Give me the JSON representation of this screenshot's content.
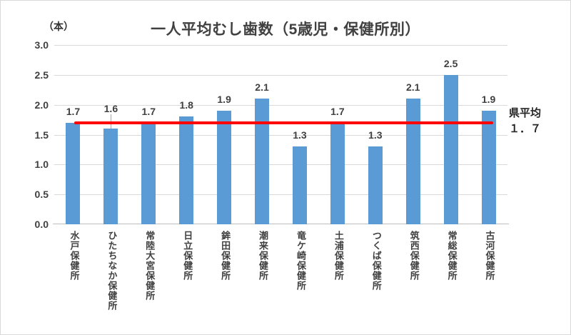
{
  "chart_data": {
    "type": "bar",
    "title": "一人平均むし歯数（5歳児・保健所別）",
    "unit_label": "（本）",
    "categories": [
      "水戸保健所",
      "ひたちなか保健所",
      "常陸大宮保健所",
      "日立保健所",
      "鉾田保健所",
      "潮来保健所",
      "竜ケ崎保健所",
      "土浦保健所",
      "つくば保健所",
      "筑西保健所",
      "常総保健所",
      "古河保健所"
    ],
    "values": [
      1.7,
      1.6,
      1.7,
      1.8,
      1.9,
      2.1,
      1.3,
      1.7,
      1.3,
      2.1,
      2.5,
      1.9
    ],
    "value_labels": [
      "1.7",
      "1.6",
      "1.7",
      "1.8",
      "1.9",
      "2.1",
      "1.3",
      "1.7",
      "1.3",
      "2.1",
      "2.5",
      "1.9"
    ],
    "callout_label_index": 1,
    "ylim": [
      0.0,
      3.0
    ],
    "ytick_step": 0.5,
    "ytick_labels": [
      "3.0",
      "2.5",
      "2.0",
      "1.5",
      "1.0",
      "0.5",
      "0.0"
    ],
    "grid": true,
    "legend_position": "none",
    "reference_line": {
      "value": 1.7,
      "label_line1": "県平均",
      "label_line2": "１．７"
    }
  },
  "colors": {
    "bar": "#5B9BD5",
    "reference_line": "#FF0000",
    "text": "#404040",
    "gridline": "#D9D9D9",
    "axis_line": "#BFBFBF"
  }
}
